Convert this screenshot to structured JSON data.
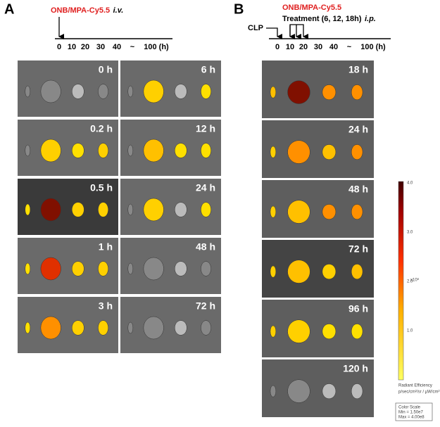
{
  "panel_a": {
    "label": "A",
    "probe": "ONB/MPA-Cy5.5",
    "route": "i.v.",
    "timeline_ticks": [
      "0",
      "10",
      "20",
      "30",
      "40",
      "~",
      "100 (h)"
    ],
    "images": [
      "0 h",
      "6 h",
      "0.2 h",
      "12 h",
      "0.5 h",
      "24 h",
      "1 h",
      "48 h",
      "3 h",
      "72 h"
    ]
  },
  "panel_b": {
    "label": "B",
    "clp": "CLP",
    "probe": "ONB/MPA-Cy5.5",
    "treatment": "Treatment (6, 12, 18h)",
    "route": "i.p.",
    "timeline_ticks": [
      "0",
      "10",
      "20",
      "30",
      "40",
      "~",
      "100 (h)"
    ],
    "images": [
      "18 h",
      "24 h",
      "48 h",
      "72 h",
      "96 h",
      "120 h"
    ]
  },
  "color_bar": {
    "ticks": [
      "4.0",
      "3.0",
      "2.0",
      "1.0"
    ],
    "multiplier": "x10⁸",
    "unit_title": "Radiant Efficiency",
    "unit": "p/sec/cm²/sr / µW/cm²",
    "scale_title": "Color Scale",
    "min": "Min = 1.50e7",
    "max": "Max = 4.00e8"
  }
}
